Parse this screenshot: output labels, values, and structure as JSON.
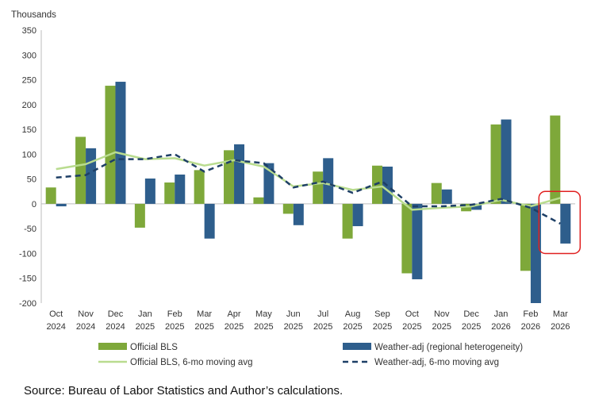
{
  "chart_data": {
    "type": "bar",
    "ylabel": "Thousands",
    "ylim": [
      -200,
      350
    ],
    "yticks": [
      -200,
      -150,
      -100,
      -50,
      0,
      50,
      100,
      150,
      200,
      250,
      300,
      350
    ],
    "categories": [
      [
        "Oct",
        "2024"
      ],
      [
        "Nov",
        "2024"
      ],
      [
        "Dec",
        "2024"
      ],
      [
        "Jan",
        "2025"
      ],
      [
        "Feb",
        "2025"
      ],
      [
        "Mar",
        "2025"
      ],
      [
        "Apr",
        "2025"
      ],
      [
        "May",
        "2025"
      ],
      [
        "Jun",
        "2025"
      ],
      [
        "Jul",
        "2025"
      ],
      [
        "Aug",
        "2025"
      ],
      [
        "Sep",
        "2025"
      ],
      [
        "Oct",
        "2025"
      ],
      [
        "Nov",
        "2025"
      ],
      [
        "Dec",
        "2025"
      ],
      [
        "Jan",
        "2026"
      ],
      [
        "Feb",
        "2026"
      ],
      [
        "Mar",
        "2026"
      ]
    ],
    "series": [
      {
        "name": "Official BLS",
        "kind": "bar",
        "color": "#7ea83a",
        "values": [
          33,
          135,
          238,
          -48,
          43,
          68,
          108,
          13,
          -20,
          65,
          -70,
          77,
          -140,
          42,
          -15,
          160,
          -135,
          178
        ]
      },
      {
        "name": "Weather-adj (regional heterogeneity)",
        "kind": "bar",
        "color": "#2e5e8c",
        "values": [
          -5,
          112,
          246,
          51,
          59,
          -70,
          120,
          82,
          -43,
          92,
          -45,
          75,
          -152,
          29,
          -12,
          170,
          -200,
          -80
        ]
      },
      {
        "name": "Official BLS, 6-mo moving avg",
        "kind": "line",
        "color": "#b9dc8f",
        "values": [
          70,
          80,
          104,
          90,
          92,
          77,
          88,
          75,
          35,
          42,
          28,
          35,
          -12,
          -8,
          -5,
          8,
          -5,
          12
        ]
      },
      {
        "name": "Weather-adj, 6-mo moving avg",
        "kind": "dashed",
        "color": "#1e3f66",
        "values": [
          53,
          58,
          90,
          90,
          100,
          65,
          88,
          82,
          33,
          45,
          22,
          45,
          -5,
          -5,
          -2,
          10,
          -8,
          -40
        ]
      }
    ],
    "highlight_color": "#e02020",
    "highlight_category": [
      "Mar",
      "2026"
    ]
  },
  "source": "Source: Bureau of Labor Statistics and Author’s calculations."
}
